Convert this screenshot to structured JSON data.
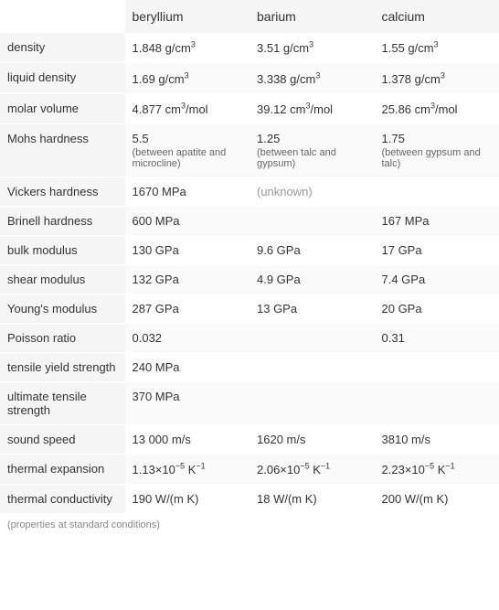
{
  "table": {
    "columns": [
      "",
      "beryllium",
      "barium",
      "calcium"
    ],
    "rows": [
      {
        "label": "density",
        "beryllium": {
          "value": "1.848 g/cm",
          "sup": "3"
        },
        "barium": {
          "value": "3.51 g/cm",
          "sup": "3"
        },
        "calcium": {
          "value": "1.55 g/cm",
          "sup": "3"
        }
      },
      {
        "label": "liquid density",
        "beryllium": {
          "value": "1.69 g/cm",
          "sup": "3"
        },
        "barium": {
          "value": "3.338 g/cm",
          "sup": "3"
        },
        "calcium": {
          "value": "1.378 g/cm",
          "sup": "3"
        }
      },
      {
        "label": "molar volume",
        "beryllium": {
          "value": "4.877 cm",
          "sup": "3",
          "suffix": "/mol"
        },
        "barium": {
          "value": "39.12 cm",
          "sup": "3",
          "suffix": "/mol"
        },
        "calcium": {
          "value": "25.86 cm",
          "sup": "3",
          "suffix": "/mol"
        }
      },
      {
        "label": "Mohs hardness",
        "beryllium": {
          "value": "5.5",
          "note": "(between apatite and microcline)"
        },
        "barium": {
          "value": "1.25",
          "note": "(between talc and gypsum)"
        },
        "calcium": {
          "value": "1.75",
          "note": "(between gypsum and talc)"
        }
      },
      {
        "label": "Vickers hardness",
        "beryllium": {
          "value": "1670 MPa"
        },
        "barium": {
          "value": "(unknown)",
          "unknown": true
        },
        "calcium": {
          "value": ""
        }
      },
      {
        "label": "Brinell hardness",
        "beryllium": {
          "value": "600 MPa"
        },
        "barium": {
          "value": ""
        },
        "calcium": {
          "value": "167 MPa"
        }
      },
      {
        "label": "bulk modulus",
        "beryllium": {
          "value": "130 GPa"
        },
        "barium": {
          "value": "9.6 GPa"
        },
        "calcium": {
          "value": "17 GPa"
        }
      },
      {
        "label": "shear modulus",
        "beryllium": {
          "value": "132 GPa"
        },
        "barium": {
          "value": "4.9 GPa"
        },
        "calcium": {
          "value": "7.4 GPa"
        }
      },
      {
        "label": "Young's modulus",
        "beryllium": {
          "value": "287 GPa"
        },
        "barium": {
          "value": "13 GPa"
        },
        "calcium": {
          "value": "20 GPa"
        }
      },
      {
        "label": "Poisson ratio",
        "beryllium": {
          "value": "0.032"
        },
        "barium": {
          "value": ""
        },
        "calcium": {
          "value": "0.31"
        }
      },
      {
        "label": "tensile yield strength",
        "beryllium": {
          "value": "240 MPa"
        },
        "barium": {
          "value": ""
        },
        "calcium": {
          "value": ""
        }
      },
      {
        "label": "ultimate tensile strength",
        "beryllium": {
          "value": "370 MPa"
        },
        "barium": {
          "value": ""
        },
        "calcium": {
          "value": ""
        }
      },
      {
        "label": "sound speed",
        "beryllium": {
          "value": "13 000 m/s"
        },
        "barium": {
          "value": "1620 m/s"
        },
        "calcium": {
          "value": "3810 m/s"
        }
      },
      {
        "label": "thermal expansion",
        "beryllium": {
          "value": "1.13×10",
          "sup": "−5",
          "suffix": " K",
          "sup2": "−1"
        },
        "barium": {
          "value": "2.06×10",
          "sup": "−5",
          "suffix": " K",
          "sup2": "−1"
        },
        "calcium": {
          "value": "2.23×10",
          "sup": "−5",
          "suffix": " K",
          "sup2": "−1"
        }
      },
      {
        "label": "thermal conductivity",
        "beryllium": {
          "value": "190 W/(m K)"
        },
        "barium": {
          "value": "18 W/(m K)"
        },
        "calcium": {
          "value": "200 W/(m K)"
        }
      }
    ],
    "footnote": "(properties at standard conditions)"
  },
  "styling": {
    "header_bg": "#f5f5f5",
    "row_label_bg": "#f5f5f5",
    "alt_row_bg": "#fafafa",
    "text_color": "#333333",
    "note_color": "#666666",
    "unknown_color": "#999999",
    "footnote_color": "#888888",
    "font_size_header": 14,
    "font_size_cell": 13,
    "font_size_note": 11,
    "font_size_footnote": 11,
    "col_width_label": 136,
    "col_width_data": 136
  }
}
